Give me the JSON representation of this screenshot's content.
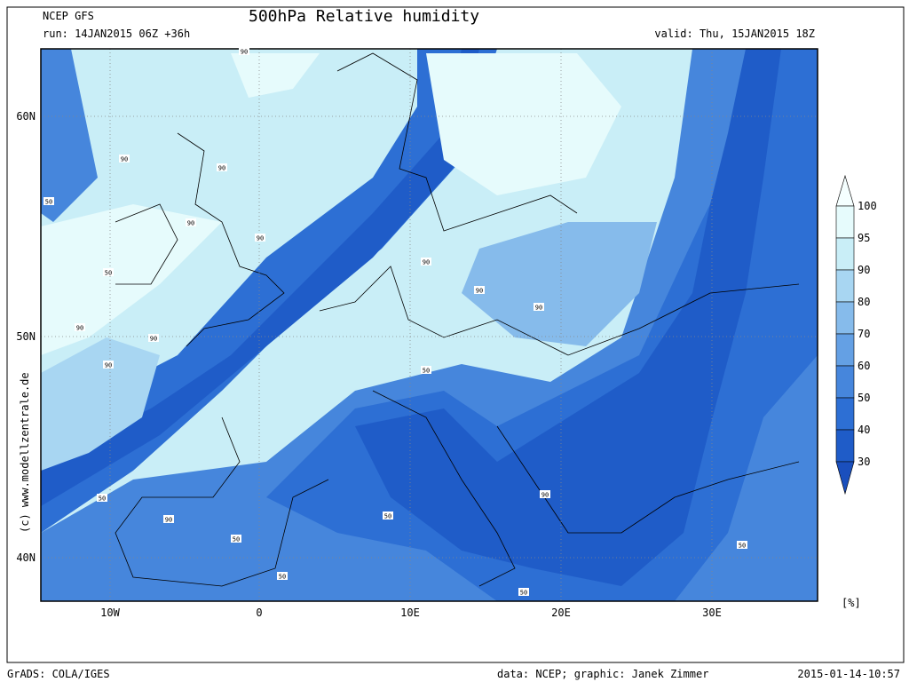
{
  "header": {
    "model": "NCEP GFS",
    "title": "500hPa Relative humidity",
    "run": "run: 14JAN2015 06Z +36h",
    "valid": "valid: Thu, 15JAN2015 18Z"
  },
  "axes": {
    "lat_labels": [
      "60N",
      "50N",
      "40N"
    ],
    "lon_labels": [
      "10W",
      "0",
      "10E",
      "20E",
      "30E"
    ]
  },
  "colorbar": {
    "levels": [
      {
        "label": "100",
        "color": "#e6fbfc"
      },
      {
        "label": "95",
        "color": "#c9eef7"
      },
      {
        "label": "90",
        "color": "#a8d6f2"
      },
      {
        "label": "80",
        "color": "#86bbeb"
      },
      {
        "label": "70",
        "color": "#64a0e4"
      },
      {
        "label": "60",
        "color": "#4686dc"
      },
      {
        "label": "50",
        "color": "#2d6fd4"
      },
      {
        "label": "40",
        "color": "#1f5cc8"
      },
      {
        "label": "30",
        "color": "#1a4fbd"
      }
    ],
    "unit": "[%]"
  },
  "side_text": "(c) www.modellzentrale.de",
  "contour_labels": [
    "90",
    "90",
    "90",
    "90",
    "50",
    "50",
    "90",
    "90",
    "90",
    "90",
    "50",
    "90",
    "90",
    "90",
    "50",
    "90",
    "50",
    "50",
    "90",
    "50",
    "50",
    "50"
  ],
  "footer": {
    "software": "GrADS: COLA/IGES",
    "credits": "data: NCEP; graphic: Janek Zimmer",
    "timestamp": "2015-01-14-10:57"
  }
}
